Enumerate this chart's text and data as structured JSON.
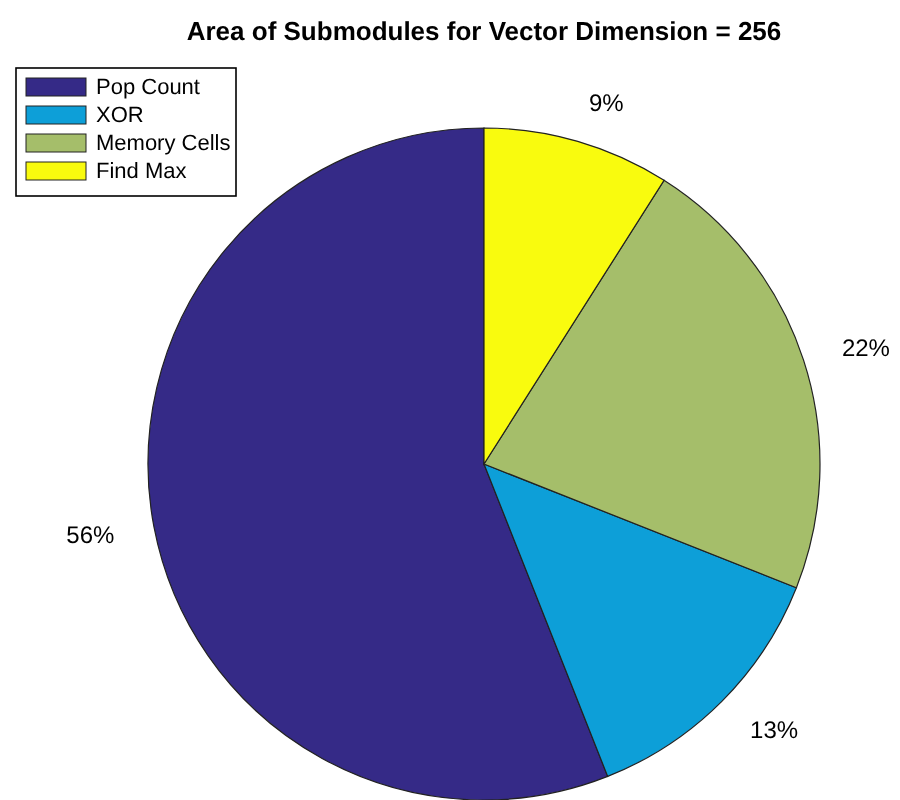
{
  "chart_data": {
    "type": "pie",
    "title": "Area of Submodules for Vector Dimension = 256",
    "categories": [
      "Pop Count",
      "XOR",
      "Memory Cells",
      "Find Max"
    ],
    "values": [
      56,
      13,
      22,
      9
    ],
    "colors": [
      "#352a87",
      "#0d9fd8",
      "#a5be6a",
      "#f9fb0e"
    ],
    "legend": "top left",
    "value_labels": [
      "56%",
      "13%",
      "22%",
      "9%"
    ]
  }
}
